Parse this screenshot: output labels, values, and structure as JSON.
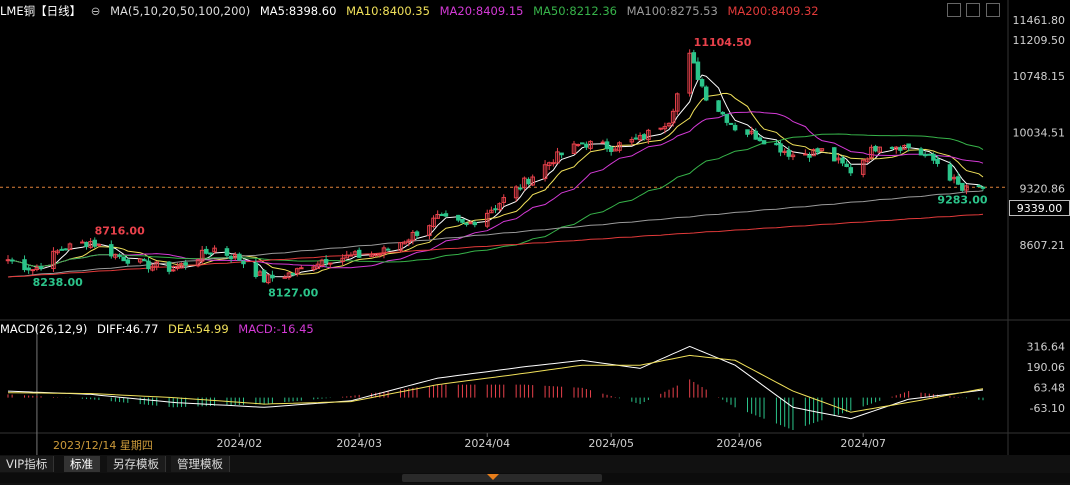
{
  "header": {
    "symbol": "LME铜【日线】",
    "ma_params": "MA(5,10,20,50,100,200)",
    "ma5": "MA5:8398.60",
    "ma10": "MA10:8400.35",
    "ma20": "MA20:8409.15",
    "ma50": "MA50:8212.36",
    "ma100": "MA100:8275.53",
    "ma200": "MA200:8409.32"
  },
  "macd_header": {
    "params": "MACD(26,12,9)",
    "diff": "DIFF:46.77",
    "dea": "DEA:54.99",
    "macd": "MACD:-16.45"
  },
  "price_axis_labels": [
    "11461.80",
    "11209.50",
    "10748.15",
    "10034.51",
    "9320.86",
    "8607.21"
  ],
  "current_price": "9339.00",
  "macd_axis_labels": [
    "316.64",
    "190.06",
    "63.48",
    "-63.10"
  ],
  "annotations": {
    "high": "11104.50",
    "left_high": "8716.00",
    "left_low": "8238.00",
    "mid_low": "8127.00",
    "last_low": "9283.00"
  },
  "cursor_date": "2023/12/14 星期四",
  "x_ticks": [
    "2024/02",
    "2024/03",
    "2024/04",
    "2024/05",
    "2024/06",
    "2024/07"
  ],
  "tabs": [
    "VIP指标",
    "标准",
    "另存模板",
    "管理模板"
  ],
  "colors": {
    "up": "#e8414b",
    "down": "#2bc48a",
    "ma5": "#ffffff",
    "ma10": "#f0e05a",
    "ma20": "#d43ad6",
    "ma50": "#37b34a",
    "ma100": "#9a9a9a",
    "ma200": "#e23a3a"
  },
  "chart_data": {
    "type": "candlestick",
    "ylim": [
      8060,
      11461.8
    ],
    "x_range": [
      "2023-12-07",
      "2024-07-30"
    ],
    "price_series": [
      [
        "2023-12-07",
        8420
      ],
      [
        "2023-12-13",
        8300
      ],
      [
        "2023-12-14",
        8320
      ],
      [
        "2023-12-20",
        8560
      ],
      [
        "2023-12-27",
        8650
      ],
      [
        "2024-01-02",
        8480
      ],
      [
        "2024-01-09",
        8360
      ],
      [
        "2024-01-16",
        8300
      ],
      [
        "2024-01-23",
        8480
      ],
      [
        "2024-01-26",
        8560
      ],
      [
        "2024-02-01",
        8430
      ],
      [
        "2024-02-07",
        8170
      ],
      [
        "2024-02-14",
        8250
      ],
      [
        "2024-02-21",
        8420
      ],
      [
        "2024-02-28",
        8460
      ],
      [
        "2024-03-06",
        8500
      ],
      [
        "2024-03-13",
        8700
      ],
      [
        "2024-03-20",
        8950
      ],
      [
        "2024-03-27",
        8850
      ],
      [
        "2024-04-03",
        9100
      ],
      [
        "2024-04-10",
        9400
      ],
      [
        "2024-04-17",
        9700
      ],
      [
        "2024-04-24",
        9900
      ],
      [
        "2024-05-01",
        9850
      ],
      [
        "2024-05-08",
        9950
      ],
      [
        "2024-05-15",
        10200
      ],
      [
        "2024-05-20",
        11000
      ],
      [
        "2024-05-24",
        10500
      ],
      [
        "2024-05-31",
        10100
      ],
      [
        "2024-06-07",
        9950
      ],
      [
        "2024-06-14",
        9750
      ],
      [
        "2024-06-21",
        9800
      ],
      [
        "2024-06-28",
        9550
      ],
      [
        "2024-07-05",
        9900
      ],
      [
        "2024-07-12",
        9850
      ],
      [
        "2024-07-19",
        9650
      ],
      [
        "2024-07-25",
        9300
      ],
      [
        "2024-07-30",
        9339
      ]
    ],
    "macd": {
      "ylim": [
        -200,
        380
      ],
      "diff": [
        [
          "2023-12-07",
          40
        ],
        [
          "2023-12-27",
          20
        ],
        [
          "2024-01-16",
          -30
        ],
        [
          "2024-02-07",
          -60
        ],
        [
          "2024-02-28",
          -20
        ],
        [
          "2024-03-20",
          120
        ],
        [
          "2024-04-10",
          190
        ],
        [
          "2024-04-24",
          230
        ],
        [
          "2024-05-08",
          180
        ],
        [
          "2024-05-20",
          316
        ],
        [
          "2024-05-31",
          200
        ],
        [
          "2024-06-14",
          -60
        ],
        [
          "2024-06-28",
          -130
        ],
        [
          "2024-07-12",
          -10
        ],
        [
          "2024-07-30",
          46.77
        ]
      ],
      "dea": [
        [
          "2023-12-07",
          30
        ],
        [
          "2023-12-27",
          25
        ],
        [
          "2024-01-16",
          0
        ],
        [
          "2024-02-07",
          -40
        ],
        [
          "2024-02-28",
          -25
        ],
        [
          "2024-03-20",
          80
        ],
        [
          "2024-04-10",
          150
        ],
        [
          "2024-04-24",
          200
        ],
        [
          "2024-05-08",
          200
        ],
        [
          "2024-05-20",
          260
        ],
        [
          "2024-05-31",
          230
        ],
        [
          "2024-06-14",
          40
        ],
        [
          "2024-06-28",
          -90
        ],
        [
          "2024-07-12",
          -30
        ],
        [
          "2024-07-30",
          54.99
        ]
      ]
    }
  }
}
